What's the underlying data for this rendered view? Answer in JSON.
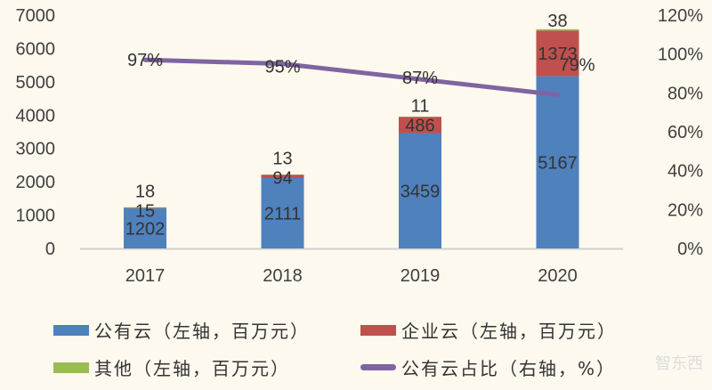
{
  "chart_data": {
    "type": "bar+line",
    "categories": [
      "2017",
      "2018",
      "2019",
      "2020"
    ],
    "stacked": true,
    "series": [
      {
        "name": "公有云（左轴，百万元）",
        "type": "bar",
        "axis": "left",
        "color": "#4f81bd",
        "values": [
          1202,
          2111,
          3459,
          5167
        ]
      },
      {
        "name": "企业云（左轴，百万元）",
        "type": "bar",
        "axis": "left",
        "color": "#c0504d",
        "values": [
          15,
          94,
          486,
          1373
        ]
      },
      {
        "name": "其他（左轴，百万元）",
        "type": "bar",
        "axis": "left",
        "color": "#9bbb59",
        "values": [
          18,
          13,
          11,
          38
        ]
      },
      {
        "name": "公有云占比（右轴，%）",
        "type": "line",
        "axis": "right",
        "color": "#8064a2",
        "values": [
          97,
          95,
          87,
          79
        ],
        "labels": [
          "97%",
          "95%",
          "87%",
          "79%"
        ]
      }
    ],
    "left_axis": {
      "ylim": [
        0,
        7000
      ],
      "ticks": [
        "0",
        "1000",
        "2000",
        "3000",
        "4000",
        "5000",
        "6000",
        "7000"
      ]
    },
    "right_axis": {
      "ylim": [
        0,
        120
      ],
      "ticks": [
        "0%",
        "20%",
        "40%",
        "60%",
        "80%",
        "100%",
        "120%"
      ]
    },
    "grid": false,
    "legend_position": "bottom"
  },
  "watermark": "智东西"
}
